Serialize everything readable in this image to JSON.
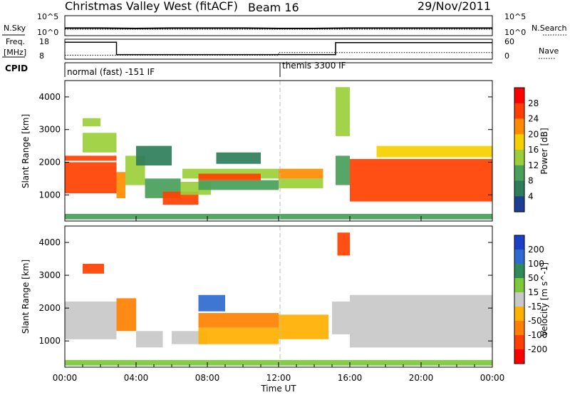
{
  "header": {
    "title": "Christmas Valley West (fitACF)",
    "beam": "Beam 16",
    "date": "29/Nov/2011"
  },
  "top_panels": {
    "nsky_label": "N.Sky",
    "nsearch_label": "N.Search",
    "freq_label": "Freq.",
    "freq_unit": "[MHz]",
    "nave_label": "Nave",
    "cpid_label": "CPID",
    "nsky_ticks": [
      "10^5",
      "10^0"
    ],
    "nsearch_ticks": [
      "10^5",
      "10^0"
    ],
    "freq_ticks": [
      "18",
      "8"
    ],
    "nave_ticks": [
      "60",
      "0"
    ],
    "cpid_segments": [
      {
        "start": "00:00",
        "end": "12:00",
        "label": "normal (fast) -151 IF"
      },
      {
        "start": "12:00",
        "end": "24:00",
        "label": "themis 3300 IF"
      }
    ]
  },
  "power_panel": {
    "ylabel": "Slant Range [km]",
    "yticks": [
      "4000",
      "3000",
      "2000",
      "1000"
    ],
    "colorbar_label": "Power [dB]",
    "colorbar_ticks": [
      "28",
      "24",
      "20",
      "16",
      "12",
      "8",
      "4"
    ]
  },
  "velocity_panel": {
    "ylabel": "Slant Range [km]",
    "yticks": [
      "4000",
      "3000",
      "2000",
      "1000"
    ],
    "colorbar_label": "Velocity [m s^-1]",
    "colorbar_ticks": [
      "200",
      "100",
      "50",
      "15",
      "-15",
      "-50",
      "-100",
      "-200"
    ]
  },
  "xaxis": {
    "label": "Time UT",
    "ticks": [
      "00:00",
      "04:00",
      "08:00",
      "12:00",
      "16:00",
      "20:00",
      "00:00"
    ]
  },
  "chart_data": [
    {
      "type": "line",
      "name_panel": "N.Sky / N.Search",
      "x_unit": "hours UT",
      "xlim": [
        0,
        24
      ],
      "ylim_log10": [
        0,
        5
      ],
      "series": [
        {
          "name": "N.Sky",
          "style": "solid",
          "x": [
            0,
            2,
            4,
            6,
            8,
            10,
            12,
            14,
            16,
            18,
            20,
            22,
            24
          ],
          "log10_values": [
            1.9,
            1.9,
            1.8,
            1.9,
            1.9,
            1.9,
            1.8,
            1.8,
            1.9,
            1.9,
            1.9,
            1.9,
            1.9
          ]
        },
        {
          "name": "N.Search",
          "style": "dotted",
          "x": [
            0,
            4,
            8,
            12,
            16,
            20,
            24
          ],
          "log10_values": [
            1.6,
            1.6,
            1.6,
            1.6,
            1.6,
            1.6,
            1.6
          ]
        }
      ]
    },
    {
      "type": "line",
      "name_panel": "Freq / Nave",
      "x_unit": "hours UT",
      "xlim": [
        0,
        24
      ],
      "series": [
        {
          "name": "Freq.",
          "unit": "MHz",
          "ylim": [
            8,
            18
          ],
          "style": "solid",
          "x": [
            0,
            2.9,
            2.9,
            15.2,
            15.2,
            24
          ],
          "values": [
            16.5,
            16.5,
            10.3,
            10.3,
            16.3,
            16.3
          ]
        },
        {
          "name": "Nave",
          "ylim": [
            0,
            60
          ],
          "style": "dotted",
          "x": [
            0,
            12,
            12,
            24
          ],
          "values": [
            12,
            12,
            20,
            20
          ]
        }
      ]
    },
    {
      "type": "heatmap",
      "name_panel": "Power",
      "x_unit": "hours UT",
      "y_unit": "km",
      "xlim": [
        0,
        24
      ],
      "ylim": [
        200,
        4500
      ],
      "colorbar_range": [
        0,
        30
      ],
      "colorbar_unit": "dB",
      "regions": [
        {
          "t0": 0.0,
          "t1": 2.9,
          "r0": 1050,
          "r1": 2000,
          "value": 28
        },
        {
          "t0": 0.0,
          "t1": 2.9,
          "r0": 2050,
          "r1": 2200,
          "value": 26
        },
        {
          "t0": 1.0,
          "t1": 2.9,
          "r0": 2300,
          "r1": 2900,
          "value": 14
        },
        {
          "t0": 1.0,
          "t1": 2.0,
          "r0": 3100,
          "r1": 3350,
          "value": 16
        },
        {
          "t0": 2.9,
          "t1": 3.4,
          "r0": 900,
          "r1": 1700,
          "value": 24
        },
        {
          "t0": 3.4,
          "t1": 4.5,
          "r0": 1300,
          "r1": 2200,
          "value": 14
        },
        {
          "t0": 4.0,
          "t1": 6.0,
          "r0": 1900,
          "r1": 2500,
          "value": 6
        },
        {
          "t0": 4.5,
          "t1": 6.5,
          "r0": 900,
          "r1": 1500,
          "value": 12
        },
        {
          "t0": 5.5,
          "t1": 7.5,
          "r0": 700,
          "r1": 1100,
          "value": 26
        },
        {
          "t0": 6.5,
          "t1": 8.2,
          "r0": 1000,
          "r1": 1400,
          "value": 14
        },
        {
          "t0": 6.6,
          "t1": 12.0,
          "r0": 1500,
          "r1": 1800,
          "value": 14
        },
        {
          "t0": 7.5,
          "t1": 12.0,
          "r0": 1150,
          "r1": 1450,
          "value": 12
        },
        {
          "t0": 7.5,
          "t1": 11.0,
          "r0": 1450,
          "r1": 1650,
          "value": 26
        },
        {
          "t0": 8.5,
          "t1": 11.0,
          "r0": 1950,
          "r1": 2300,
          "value": 6
        },
        {
          "t0": 12.0,
          "t1": 14.5,
          "r0": 1200,
          "r1": 1500,
          "value": 16
        },
        {
          "t0": 12.0,
          "t1": 14.5,
          "r0": 1500,
          "r1": 1800,
          "value": 24
        },
        {
          "t0": 15.2,
          "t1": 16.0,
          "r0": 1300,
          "r1": 2200,
          "value": 12
        },
        {
          "t0": 15.2,
          "t1": 16.0,
          "r0": 2800,
          "r1": 4300,
          "value": 14
        },
        {
          "t0": 16.0,
          "t1": 24.0,
          "r0": 800,
          "r1": 2100,
          "value": 28
        },
        {
          "t0": 17.5,
          "t1": 24.0,
          "r0": 2150,
          "r1": 2500,
          "value": 18
        },
        {
          "t0": 0.0,
          "t1": 24.0,
          "r0": 250,
          "r1": 420,
          "value": 10
        }
      ]
    },
    {
      "type": "heatmap",
      "name_panel": "Velocity",
      "x_unit": "hours UT",
      "y_unit": "km",
      "xlim": [
        0,
        24
      ],
      "ylim": [
        200,
        4500
      ],
      "colorbar_range": [
        -250,
        250
      ],
      "colorbar_unit": "m s^-1",
      "regions": [
        {
          "t0": 0.0,
          "t1": 2.9,
          "r0": 1050,
          "r1": 2200,
          "value": 0
        },
        {
          "t0": 1.0,
          "t1": 2.2,
          "r0": 3050,
          "r1": 3350,
          "value": -180
        },
        {
          "t0": 2.9,
          "t1": 4.0,
          "r0": 1300,
          "r1": 2300,
          "value": -60
        },
        {
          "t0": 4.0,
          "t1": 5.5,
          "r0": 800,
          "r1": 1300,
          "value": 0
        },
        {
          "t0": 6.0,
          "t1": 8.0,
          "r0": 900,
          "r1": 1300,
          "value": 0
        },
        {
          "t0": 7.5,
          "t1": 9.0,
          "r0": 1900,
          "r1": 2400,
          "value": 180
        },
        {
          "t0": 7.5,
          "t1": 12.0,
          "r0": 1400,
          "r1": 1850,
          "value": -90
        },
        {
          "t0": 7.5,
          "t1": 12.0,
          "r0": 900,
          "r1": 1400,
          "value": -40
        },
        {
          "t0": 12.0,
          "t1": 14.8,
          "r0": 1050,
          "r1": 1800,
          "value": -40
        },
        {
          "t0": 15.0,
          "t1": 16.0,
          "r0": 1200,
          "r1": 2200,
          "value": 10
        },
        {
          "t0": 15.3,
          "t1": 16.0,
          "r0": 3600,
          "r1": 4300,
          "value": -200
        },
        {
          "t0": 16.0,
          "t1": 24.0,
          "r0": 800,
          "r1": 2400,
          "value": 0
        },
        {
          "t0": 0.0,
          "t1": 24.0,
          "r0": 250,
          "r1": 420,
          "value": 20
        }
      ]
    }
  ]
}
